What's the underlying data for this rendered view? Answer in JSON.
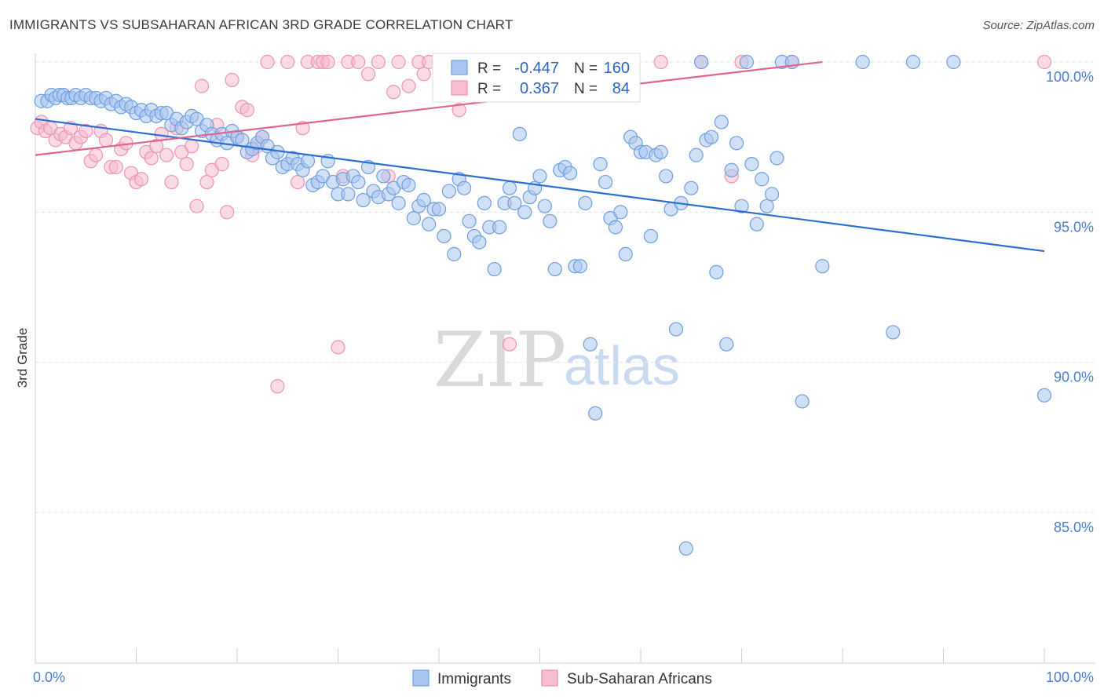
{
  "title": "IMMIGRANTS VS SUBSAHARAN AFRICAN 3RD GRADE CORRELATION CHART",
  "source": "Source: ZipAtlas.com",
  "watermark": {
    "zip": "ZIP",
    "atlas": "atlas"
  },
  "colors": {
    "blue_fill": "#a9c6f0",
    "blue_stroke": "#6f9ee0",
    "blue_line": "#2a6fd0",
    "pink_fill": "#f6bcd0",
    "pink_stroke": "#ee93b2",
    "pink_line": "#e0648f",
    "grid": "#e3e3e3",
    "tick_text": "#4a7bd0"
  },
  "legend": {
    "r_label": "R =",
    "n_label": "N =",
    "immigrants": {
      "r": "-0.447",
      "n": "160"
    },
    "subsaharan": {
      "r": "0.367",
      "n": "84"
    }
  },
  "chart_data": {
    "type": "scatter",
    "title": "IMMIGRANTS VS SUBSAHARAN AFRICAN 3RD GRADE CORRELATION CHART",
    "xlabel": "",
    "ylabel": "3rd Grade",
    "xlim": [
      0,
      100
    ],
    "ylim": [
      80.5,
      100.8
    ],
    "x_tick_labels": [
      "0.0%",
      "100.0%"
    ],
    "y_ticks": [
      100,
      95,
      90,
      85
    ],
    "y_tick_labels": [
      "100.0%",
      "95.0%",
      "90.0%",
      "85.0%"
    ],
    "legend_bottom": [
      "Immigrants",
      "Sub-Saharan Africans"
    ],
    "series": [
      {
        "name": "Immigrants",
        "trend": {
          "x": [
            0,
            100
          ],
          "y": [
            98.1,
            93.7
          ]
        },
        "points": [
          [
            0.6,
            98.7
          ],
          [
            1.2,
            98.7
          ],
          [
            1.6,
            98.9
          ],
          [
            2,
            98.8
          ],
          [
            2.4,
            98.9
          ],
          [
            2.8,
            98.9
          ],
          [
            3.2,
            98.8
          ],
          [
            3.6,
            98.8
          ],
          [
            4,
            98.9
          ],
          [
            4.5,
            98.8
          ],
          [
            5,
            98.9
          ],
          [
            5.5,
            98.8
          ],
          [
            6,
            98.8
          ],
          [
            6.5,
            98.7
          ],
          [
            7,
            98.8
          ],
          [
            7.5,
            98.6
          ],
          [
            8,
            98.7
          ],
          [
            8.5,
            98.5
          ],
          [
            9,
            98.6
          ],
          [
            9.5,
            98.5
          ],
          [
            10,
            98.3
          ],
          [
            10.5,
            98.4
          ],
          [
            11,
            98.2
          ],
          [
            11.5,
            98.4
          ],
          [
            12,
            98.2
          ],
          [
            12.5,
            98.3
          ],
          [
            13,
            98.3
          ],
          [
            13.5,
            97.9
          ],
          [
            14,
            98.1
          ],
          [
            14.5,
            97.8
          ],
          [
            15,
            98.0
          ],
          [
            15.5,
            98.2
          ],
          [
            16,
            98.1
          ],
          [
            16.5,
            97.7
          ],
          [
            17,
            97.9
          ],
          [
            17.5,
            97.6
          ],
          [
            18,
            97.4
          ],
          [
            18.5,
            97.6
          ],
          [
            19,
            97.3
          ],
          [
            19.5,
            97.7
          ],
          [
            20,
            97.5
          ],
          [
            20.5,
            97.4
          ],
          [
            21,
            97.0
          ],
          [
            21.5,
            97.1
          ],
          [
            22,
            97.3
          ],
          [
            22.5,
            97.5
          ],
          [
            23,
            97.2
          ],
          [
            23.5,
            96.8
          ],
          [
            24,
            97.0
          ],
          [
            24.5,
            96.5
          ],
          [
            25,
            96.6
          ],
          [
            25.5,
            96.8
          ],
          [
            26,
            96.6
          ],
          [
            26.5,
            96.4
          ],
          [
            27,
            96.7
          ],
          [
            27.5,
            95.9
          ],
          [
            28,
            96.0
          ],
          [
            28.5,
            96.2
          ],
          [
            29,
            96.7
          ],
          [
            29.5,
            96.0
          ],
          [
            30,
            95.6
          ],
          [
            30.5,
            96.1
          ],
          [
            31,
            95.6
          ],
          [
            31.5,
            96.2
          ],
          [
            32,
            96.0
          ],
          [
            32.5,
            95.4
          ],
          [
            33,
            96.5
          ],
          [
            33.5,
            95.7
          ],
          [
            34,
            95.5
          ],
          [
            34.5,
            96.2
          ],
          [
            35,
            95.6
          ],
          [
            35.5,
            95.8
          ],
          [
            36,
            95.3
          ],
          [
            36.5,
            96.0
          ],
          [
            37,
            95.9
          ],
          [
            37.5,
            94.8
          ],
          [
            38,
            95.2
          ],
          [
            38.5,
            95.4
          ],
          [
            39,
            94.6
          ],
          [
            39.5,
            95.1
          ],
          [
            40,
            95.1
          ],
          [
            40.5,
            94.2
          ],
          [
            41,
            95.7
          ],
          [
            41.5,
            93.6
          ],
          [
            42,
            96.1
          ],
          [
            42.5,
            95.8
          ],
          [
            43,
            94.7
          ],
          [
            43.5,
            94.2
          ],
          [
            44,
            94.0
          ],
          [
            44.5,
            95.3
          ],
          [
            45,
            94.5
          ],
          [
            45.5,
            93.1
          ],
          [
            46,
            94.5
          ],
          [
            46.5,
            95.3
          ],
          [
            47,
            95.8
          ],
          [
            47.5,
            95.3
          ],
          [
            48,
            97.6
          ],
          [
            48.5,
            95.0
          ],
          [
            49,
            95.5
          ],
          [
            49.5,
            95.8
          ],
          [
            50,
            96.2
          ],
          [
            50.5,
            95.2
          ],
          [
            51,
            94.7
          ],
          [
            51.5,
            93.1
          ],
          [
            52,
            96.4
          ],
          [
            52.5,
            96.5
          ],
          [
            53,
            96.3
          ],
          [
            53.5,
            93.2
          ],
          [
            54,
            93.2
          ],
          [
            54.5,
            95.3
          ],
          [
            55,
            90.6
          ],
          [
            55.5,
            88.3
          ],
          [
            56,
            96.6
          ],
          [
            56.5,
            96.0
          ],
          [
            57,
            94.8
          ],
          [
            57.5,
            94.5
          ],
          [
            58,
            95.0
          ],
          [
            58.5,
            93.6
          ],
          [
            59,
            97.5
          ],
          [
            59.5,
            97.3
          ],
          [
            60,
            97.0
          ],
          [
            60.5,
            97.0
          ],
          [
            61,
            94.2
          ],
          [
            61.5,
            96.9
          ],
          [
            62,
            97.0
          ],
          [
            62.5,
            96.2
          ],
          [
            63,
            95.1
          ],
          [
            63.5,
            91.1
          ],
          [
            64,
            95.3
          ],
          [
            64.5,
            83.8
          ],
          [
            65,
            95.8
          ],
          [
            65.5,
            96.9
          ],
          [
            66,
            100
          ],
          [
            66.5,
            97.4
          ],
          [
            67,
            97.5
          ],
          [
            67.5,
            93.0
          ],
          [
            68,
            98.0
          ],
          [
            68.5,
            90.6
          ],
          [
            69,
            96.4
          ],
          [
            69.5,
            97.3
          ],
          [
            70,
            95.2
          ],
          [
            70.5,
            100
          ],
          [
            71,
            96.6
          ],
          [
            71.5,
            94.6
          ],
          [
            72,
            96.1
          ],
          [
            72.5,
            95.2
          ],
          [
            73,
            95.6
          ],
          [
            73.5,
            96.8
          ],
          [
            74,
            100
          ],
          [
            75,
            100
          ],
          [
            76,
            88.7
          ],
          [
            78,
            93.2
          ],
          [
            82,
            100
          ],
          [
            85,
            91.0
          ],
          [
            87,
            100
          ],
          [
            91,
            100
          ],
          [
            100,
            88.9
          ]
        ]
      },
      {
        "name": "Sub-Saharan Africans",
        "trend": {
          "x": [
            0,
            78
          ],
          "y": [
            96.9,
            100.0
          ]
        },
        "points": [
          [
            0.2,
            97.8
          ],
          [
            0.6,
            98.0
          ],
          [
            1,
            97.7
          ],
          [
            1.5,
            97.8
          ],
          [
            2,
            97.4
          ],
          [
            2.5,
            97.6
          ],
          [
            3,
            97.5
          ],
          [
            3.5,
            97.8
          ],
          [
            4,
            97.3
          ],
          [
            4.5,
            97.5
          ],
          [
            5,
            97.7
          ],
          [
            5.5,
            96.7
          ],
          [
            6,
            96.9
          ],
          [
            6.5,
            97.7
          ],
          [
            7,
            97.4
          ],
          [
            7.5,
            96.5
          ],
          [
            8,
            96.5
          ],
          [
            8.5,
            97.1
          ],
          [
            9,
            97.3
          ],
          [
            9.5,
            96.3
          ],
          [
            10,
            96.0
          ],
          [
            10.5,
            96.1
          ],
          [
            11,
            97.0
          ],
          [
            11.5,
            96.8
          ],
          [
            12,
            97.2
          ],
          [
            12.5,
            97.6
          ],
          [
            13,
            96.9
          ],
          [
            13.5,
            96.0
          ],
          [
            14,
            97.8
          ],
          [
            14.5,
            97.0
          ],
          [
            15,
            96.6
          ],
          [
            15.5,
            97.2
          ],
          [
            16,
            95.2
          ],
          [
            16.5,
            99.2
          ],
          [
            17,
            96.0
          ],
          [
            17.5,
            96.4
          ],
          [
            18,
            97.9
          ],
          [
            18.5,
            96.6
          ],
          [
            19,
            95.0
          ],
          [
            19.5,
            99.4
          ],
          [
            20,
            97.5
          ],
          [
            20.5,
            98.5
          ],
          [
            21,
            98.4
          ],
          [
            21.5,
            96.9
          ],
          [
            22,
            97.2
          ],
          [
            22.5,
            97.5
          ],
          [
            23,
            100
          ],
          [
            24,
            89.2
          ],
          [
            25,
            100
          ],
          [
            26,
            96.0
          ],
          [
            26.5,
            97.8
          ],
          [
            27,
            100
          ],
          [
            28,
            100
          ],
          [
            28.5,
            100
          ],
          [
            29,
            100
          ],
          [
            30,
            90.5
          ],
          [
            30.5,
            96.2
          ],
          [
            31,
            100
          ],
          [
            32,
            100
          ],
          [
            33,
            99.6
          ],
          [
            34,
            100
          ],
          [
            35,
            96.2
          ],
          [
            35.5,
            99.0
          ],
          [
            36,
            100
          ],
          [
            37,
            99.2
          ],
          [
            38,
            100
          ],
          [
            38.5,
            99.6
          ],
          [
            39,
            100
          ],
          [
            40,
            100
          ],
          [
            42,
            98.4
          ],
          [
            43,
            100
          ],
          [
            45,
            100
          ],
          [
            47,
            90.6
          ],
          [
            49,
            100
          ],
          [
            50,
            100
          ],
          [
            52,
            100
          ],
          [
            55,
            100
          ],
          [
            57,
            100
          ],
          [
            59,
            100
          ],
          [
            62,
            100
          ],
          [
            66,
            100
          ],
          [
            69,
            96.2
          ],
          [
            70,
            100
          ],
          [
            75,
            100
          ],
          [
            100,
            100
          ]
        ]
      }
    ]
  }
}
